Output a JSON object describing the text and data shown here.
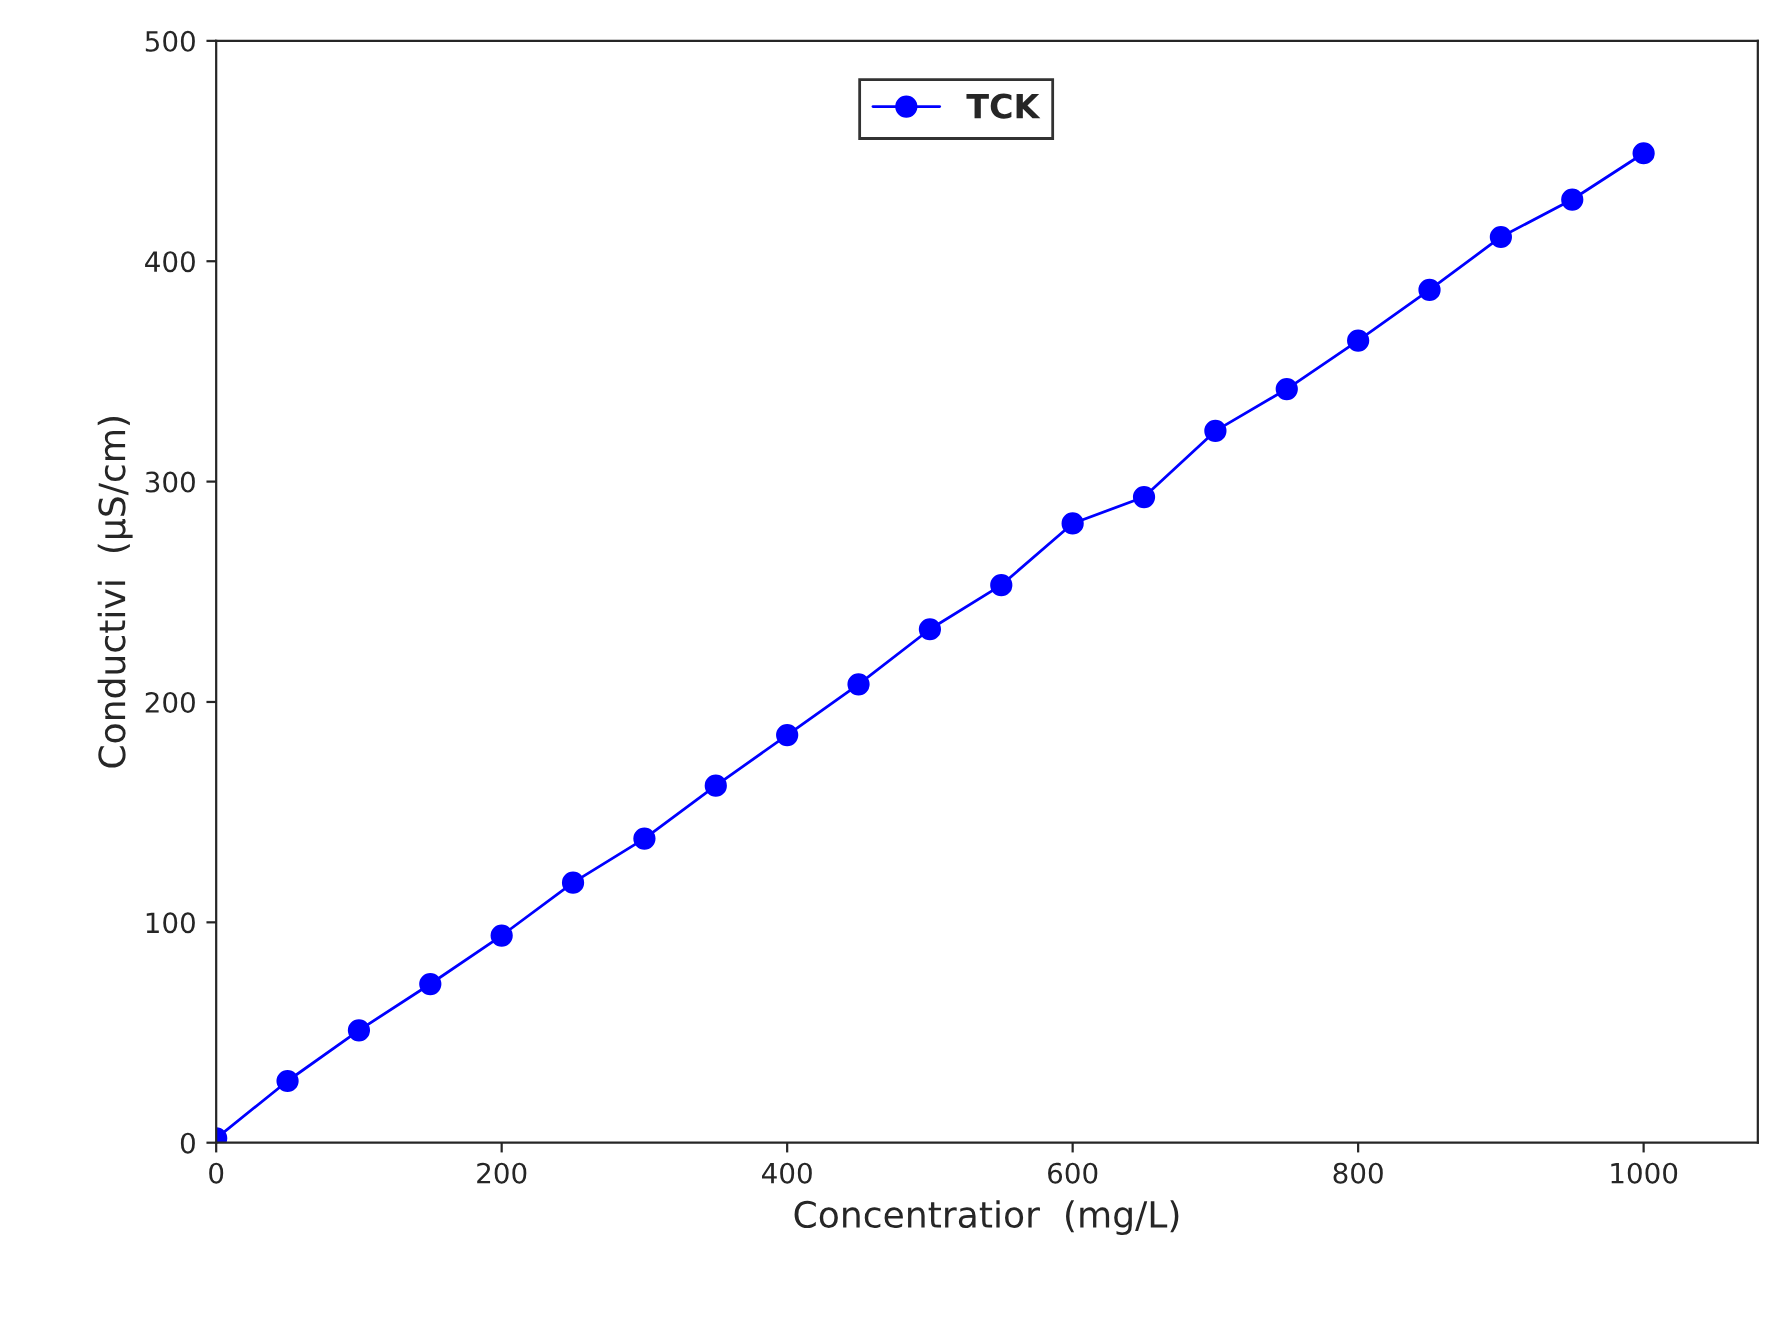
{
  "chart_data": {
    "type": "line",
    "xlabel": "Concentratior  (mg/L)",
    "ylabel": "Conductivi  (µS/cm)",
    "x": [
      0,
      50,
      100,
      150,
      200,
      250,
      300,
      350,
      400,
      450,
      500,
      550,
      600,
      650,
      700,
      750,
      800,
      850,
      900,
      950,
      1000
    ],
    "series": [
      {
        "name": "TCK",
        "color": "#0000ff",
        "values": [
          2,
          28,
          51,
          72,
          94,
          118,
          138,
          162,
          185,
          208,
          233,
          253,
          281,
          293,
          323,
          342,
          364,
          387,
          411,
          428,
          449
        ]
      }
    ],
    "xlim": [
      0,
      1080
    ],
    "ylim": [
      0,
      500
    ],
    "xticks": [
      0,
      200,
      400,
      600,
      800,
      1000
    ],
    "yticks": [
      0,
      100,
      200,
      300,
      400,
      500
    ],
    "legend": "top",
    "marker": "circle",
    "line_style": "solid",
    "grid": false
  }
}
